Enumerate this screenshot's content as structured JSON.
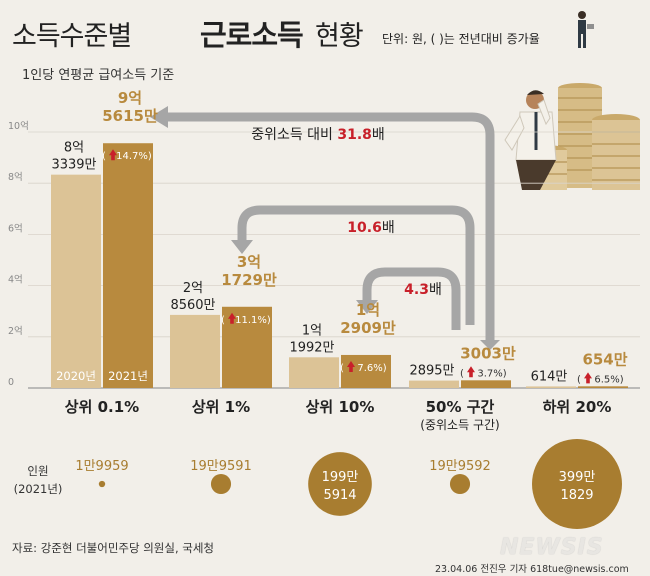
{
  "title": {
    "part1": "소득수준별",
    "part2": "근로소득",
    "part3": "현황",
    "unit": "단위: 원, ( )는 전년대비 증가율"
  },
  "subtitle": "1인당 연평균 급여소득 기준",
  "source": "자료: 강준현 더불어민주당 의원실, 국세청",
  "footer": "23.04.06 전진우 기자 618tue@newsis.com",
  "watermark": "NEWSIS",
  "colors": {
    "bar2020": "#dcc396",
    "bar2021": "#b88a3e",
    "arrow": "#a6a6a6",
    "accent": "#c8202a",
    "circle": "#a87d30"
  },
  "chart_data": {
    "type": "bar",
    "ylim": [
      0,
      10
    ],
    "yticks": [
      {
        "v": 0,
        "label": "0"
      },
      {
        "v": 2,
        "label": "2억"
      },
      {
        "v": 4,
        "label": "4억"
      },
      {
        "v": 6,
        "label": "6억"
      },
      {
        "v": 8,
        "label": "8억"
      },
      {
        "v": 10,
        "label": "10억"
      }
    ],
    "series_names": [
      "2020년",
      "2021년"
    ],
    "groups": [
      {
        "name": "상위 0.1%",
        "sub": "",
        "v2020": 8.3339,
        "v2021": 9.5615,
        "label2020": [
          "8억",
          "3339만"
        ],
        "label2021": [
          "9억",
          "5615만"
        ],
        "pct": "14.7%",
        "people": "1만9959",
        "people_val": 19959
      },
      {
        "name": "상위 1%",
        "sub": "",
        "v2020": 2.856,
        "v2021": 3.1729,
        "label2020": [
          "2억",
          "8560만"
        ],
        "label2021": [
          "3억",
          "1729만"
        ],
        "pct": "11.1%",
        "people": "19만9591",
        "people_val": 199591
      },
      {
        "name": "상위 10%",
        "sub": "",
        "v2020": 1.1992,
        "v2021": 1.2909,
        "label2020": [
          "1억",
          "1992만"
        ],
        "label2021": [
          "1억",
          "2909만"
        ],
        "pct": "7.6%",
        "people": "199만5914",
        "people_val": 1995914
      },
      {
        "name": "50% 구간",
        "sub": "(중위소득 구간)",
        "v2020": 0.2895,
        "v2021": 0.3003,
        "label2020": [
          "2895만"
        ],
        "label2021": [
          "3003만"
        ],
        "pct": "3.7%",
        "people": "19만9592",
        "people_val": 199592
      },
      {
        "name": "하위 20%",
        "sub": "",
        "v2020": 0.0614,
        "v2021": 0.0654,
        "label2020": [
          "614만"
        ],
        "label2021": [
          "654만"
        ],
        "pct": "6.5%",
        "people": "399만1829",
        "people_val": 3991829
      }
    ],
    "people_title": [
      "인원",
      "(2021년)"
    ],
    "comparisons": [
      {
        "from": "50% 구간",
        "to": "상위 0.1%",
        "prefix": "중위소득 대비 ",
        "value": "31.8",
        "suffix": "배"
      },
      {
        "from": "50% 구간",
        "to": "상위 1%",
        "prefix": "",
        "value": "10.6",
        "suffix": "배"
      },
      {
        "from": "50% 구간",
        "to": "상위 10%",
        "prefix": "",
        "value": "4.3",
        "suffix": "배"
      }
    ]
  }
}
